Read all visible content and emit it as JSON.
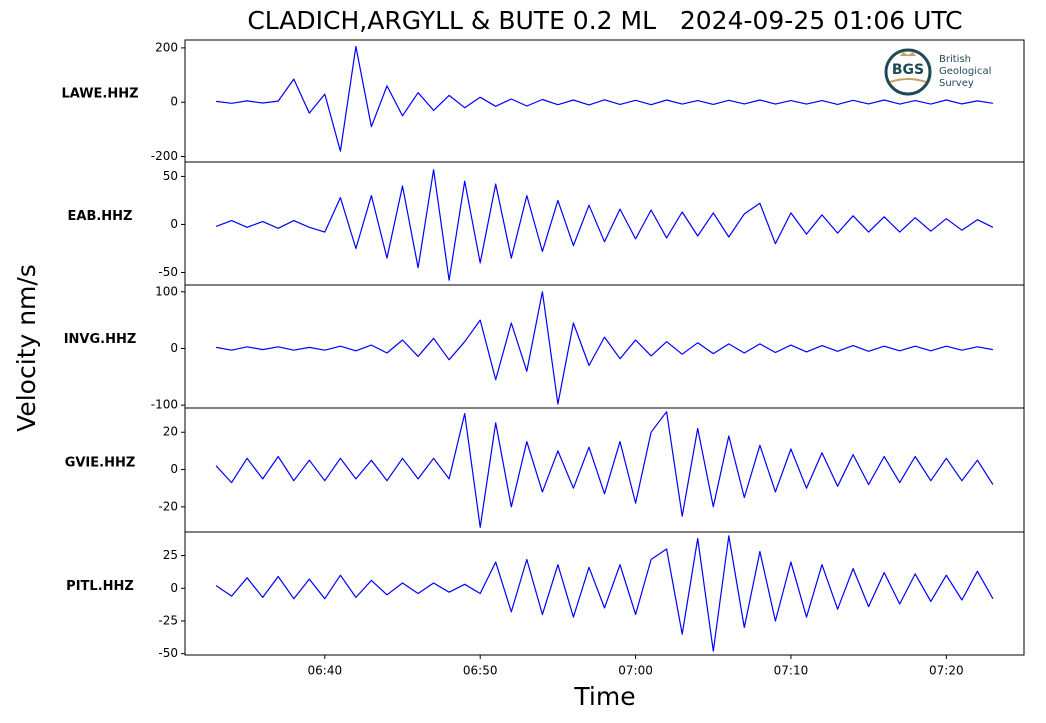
{
  "title": "CLADICH,ARGYLL & BUTE 0.2 ML   2024-09-25 01:06 UTC",
  "xlabel": "Time",
  "ylabel": "Velocity nm/s",
  "logo": {
    "mark": "BGS",
    "lines": [
      "British",
      "Geological",
      "Survey"
    ]
  },
  "chart_data": [
    {
      "type": "line",
      "label": "LAWE.HHZ",
      "color": "#0000ff",
      "x": [
        "06:33",
        "06:34",
        "06:35",
        "06:36",
        "06:37",
        "06:38",
        "06:39",
        "06:40",
        "06:41",
        "06:42",
        "06:43",
        "06:44",
        "06:45",
        "06:46",
        "06:47",
        "06:48",
        "06:49",
        "06:50",
        "06:51",
        "06:52",
        "06:53",
        "06:54",
        "06:55",
        "06:56",
        "06:57",
        "06:58",
        "06:59",
        "07:00",
        "07:01",
        "07:02",
        "07:03",
        "07:04",
        "07:05",
        "07:06",
        "07:07",
        "07:08",
        "07:09",
        "07:10",
        "07:11",
        "07:12",
        "07:13",
        "07:14",
        "07:15",
        "07:16",
        "07:17",
        "07:18",
        "07:19",
        "07:20",
        "07:21",
        "07:22",
        "07:23"
      ],
      "values": [
        3,
        -4,
        5,
        -3,
        4,
        85,
        -40,
        30,
        -180,
        205,
        -90,
        60,
        -50,
        35,
        -30,
        25,
        -20,
        18,
        -15,
        12,
        -14,
        10,
        -9,
        8,
        -10,
        9,
        -8,
        7,
        -9,
        8,
        -7,
        6,
        -8,
        7,
        -6,
        8,
        -7,
        6,
        -7,
        6,
        -8,
        7,
        -6,
        8,
        -7,
        6,
        -7,
        8,
        -6,
        5,
        -4
      ],
      "xlim": [
        "06:31",
        "07:25"
      ],
      "ylim": [
        -220,
        229
      ],
      "yticks": [
        -200,
        0,
        200
      ]
    },
    {
      "type": "line",
      "label": "EAB.HHZ",
      "color": "#0000ff",
      "x": [
        "06:33",
        "06:34",
        "06:35",
        "06:36",
        "06:37",
        "06:38",
        "06:39",
        "06:40",
        "06:41",
        "06:42",
        "06:43",
        "06:44",
        "06:45",
        "06:46",
        "06:47",
        "06:48",
        "06:49",
        "06:50",
        "06:51",
        "06:52",
        "06:53",
        "06:54",
        "06:55",
        "06:56",
        "06:57",
        "06:58",
        "06:59",
        "07:00",
        "07:01",
        "07:02",
        "07:03",
        "07:04",
        "07:05",
        "07:06",
        "07:07",
        "07:08",
        "07:09",
        "07:10",
        "07:11",
        "07:12",
        "07:13",
        "07:14",
        "07:15",
        "07:16",
        "07:17",
        "07:18",
        "07:19",
        "07:20",
        "07:21",
        "07:22",
        "07:23"
      ],
      "values": [
        -2,
        4,
        -3,
        3,
        -4,
        4,
        -3,
        -8,
        28,
        -25,
        30,
        -35,
        40,
        -45,
        57,
        -58,
        45,
        -40,
        42,
        -35,
        30,
        -28,
        25,
        -22,
        20,
        -18,
        16,
        -15,
        15,
        -14,
        13,
        -12,
        12,
        -13,
        11,
        22,
        -20,
        12,
        -10,
        10,
        -9,
        9,
        -8,
        8,
        -8,
        7,
        -7,
        6,
        -6,
        5,
        -3
      ],
      "xlim": [
        "06:31",
        "07:25"
      ],
      "ylim": [
        -63,
        65
      ],
      "yticks": [
        -50,
        0,
        50
      ]
    },
    {
      "type": "line",
      "label": "INVG.HHZ",
      "color": "#0000ff",
      "x": [
        "06:33",
        "06:34",
        "06:35",
        "06:36",
        "06:37",
        "06:38",
        "06:39",
        "06:40",
        "06:41",
        "06:42",
        "06:43",
        "06:44",
        "06:45",
        "06:46",
        "06:47",
        "06:48",
        "06:49",
        "06:50",
        "06:51",
        "06:52",
        "06:53",
        "06:54",
        "06:55",
        "06:56",
        "06:57",
        "06:58",
        "06:59",
        "07:00",
        "07:01",
        "07:02",
        "07:03",
        "07:04",
        "07:05",
        "07:06",
        "07:07",
        "07:08",
        "07:09",
        "07:10",
        "07:11",
        "07:12",
        "07:13",
        "07:14",
        "07:15",
        "07:16",
        "07:17",
        "07:18",
        "07:19",
        "07:20",
        "07:21",
        "07:22",
        "07:23"
      ],
      "values": [
        2,
        -3,
        3,
        -2,
        3,
        -3,
        2,
        -3,
        4,
        -4,
        6,
        -8,
        15,
        -14,
        18,
        -20,
        12,
        50,
        -55,
        45,
        -40,
        100,
        -98,
        45,
        -30,
        20,
        -18,
        15,
        -13,
        12,
        -10,
        10,
        -9,
        8,
        -8,
        8,
        -7,
        6,
        -6,
        5,
        -5,
        5,
        -5,
        4,
        -4,
        4,
        -4,
        4,
        -3,
        3,
        -2
      ],
      "xlim": [
        "06:31",
        "07:25"
      ],
      "ylim": [
        -105,
        112
      ],
      "yticks": [
        -100,
        0,
        100
      ]
    },
    {
      "type": "line",
      "label": "GVIE.HHZ",
      "color": "#0000ff",
      "x": [
        "06:33",
        "06:34",
        "06:35",
        "06:36",
        "06:37",
        "06:38",
        "06:39",
        "06:40",
        "06:41",
        "06:42",
        "06:43",
        "06:44",
        "06:45",
        "06:46",
        "06:47",
        "06:48",
        "06:49",
        "06:50",
        "06:51",
        "06:52",
        "06:53",
        "06:54",
        "06:55",
        "06:56",
        "06:57",
        "06:58",
        "06:59",
        "07:00",
        "07:01",
        "07:02",
        "07:03",
        "07:04",
        "07:05",
        "07:06",
        "07:07",
        "07:08",
        "07:09",
        "07:10",
        "07:11",
        "07:12",
        "07:13",
        "07:14",
        "07:15",
        "07:16",
        "07:17",
        "07:18",
        "07:19",
        "07:20",
        "07:21",
        "07:22",
        "07:23"
      ],
      "values": [
        2,
        -7,
        6,
        -5,
        7,
        -6,
        5,
        -6,
        6,
        -5,
        5,
        -6,
        6,
        -5,
        6,
        -5,
        30,
        -31,
        25,
        -20,
        15,
        -12,
        10,
        -10,
        12,
        -13,
        15,
        -18,
        20,
        31,
        -25,
        22,
        -20,
        18,
        -15,
        13,
        -12,
        11,
        -10,
        9,
        -9,
        8,
        -8,
        7,
        -7,
        7,
        -6,
        6,
        -6,
        5,
        -8
      ],
      "xlim": [
        "06:31",
        "07:25"
      ],
      "ylim": [
        -33.5,
        33
      ],
      "yticks": [
        -20,
        0,
        20
      ]
    },
    {
      "type": "line",
      "label": "PITL.HHZ",
      "color": "#0000ff",
      "x": [
        "06:33",
        "06:34",
        "06:35",
        "06:36",
        "06:37",
        "06:38",
        "06:39",
        "06:40",
        "06:41",
        "06:42",
        "06:43",
        "06:44",
        "06:45",
        "06:46",
        "06:47",
        "06:48",
        "06:49",
        "06:50",
        "06:51",
        "06:52",
        "06:53",
        "06:54",
        "06:55",
        "06:56",
        "06:57",
        "06:58",
        "06:59",
        "07:00",
        "07:01",
        "07:02",
        "07:03",
        "07:04",
        "07:05",
        "07:06",
        "07:07",
        "07:08",
        "07:09",
        "07:10",
        "07:11",
        "07:12",
        "07:13",
        "07:14",
        "07:15",
        "07:16",
        "07:17",
        "07:18",
        "07:19",
        "07:20",
        "07:21",
        "07:22",
        "07:23"
      ],
      "values": [
        2,
        -6,
        8,
        -7,
        9,
        -8,
        7,
        -8,
        10,
        -7,
        6,
        -5,
        4,
        -4,
        4,
        -3,
        3,
        -4,
        20,
        -18,
        22,
        -20,
        18,
        -22,
        16,
        -15,
        18,
        -20,
        22,
        30,
        -35,
        38,
        -48,
        40,
        -30,
        28,
        -25,
        20,
        -22,
        18,
        -16,
        15,
        -14,
        12,
        -12,
        11,
        -10,
        10,
        -9,
        13,
        -8
      ],
      "xlim": [
        "06:31",
        "07:25"
      ],
      "ylim": [
        -51,
        43
      ],
      "yticks": [
        -50,
        -25,
        0,
        25
      ],
      "xticks": [
        "06:40",
        "06:50",
        "07:00",
        "07:10",
        "07:20"
      ]
    }
  ]
}
